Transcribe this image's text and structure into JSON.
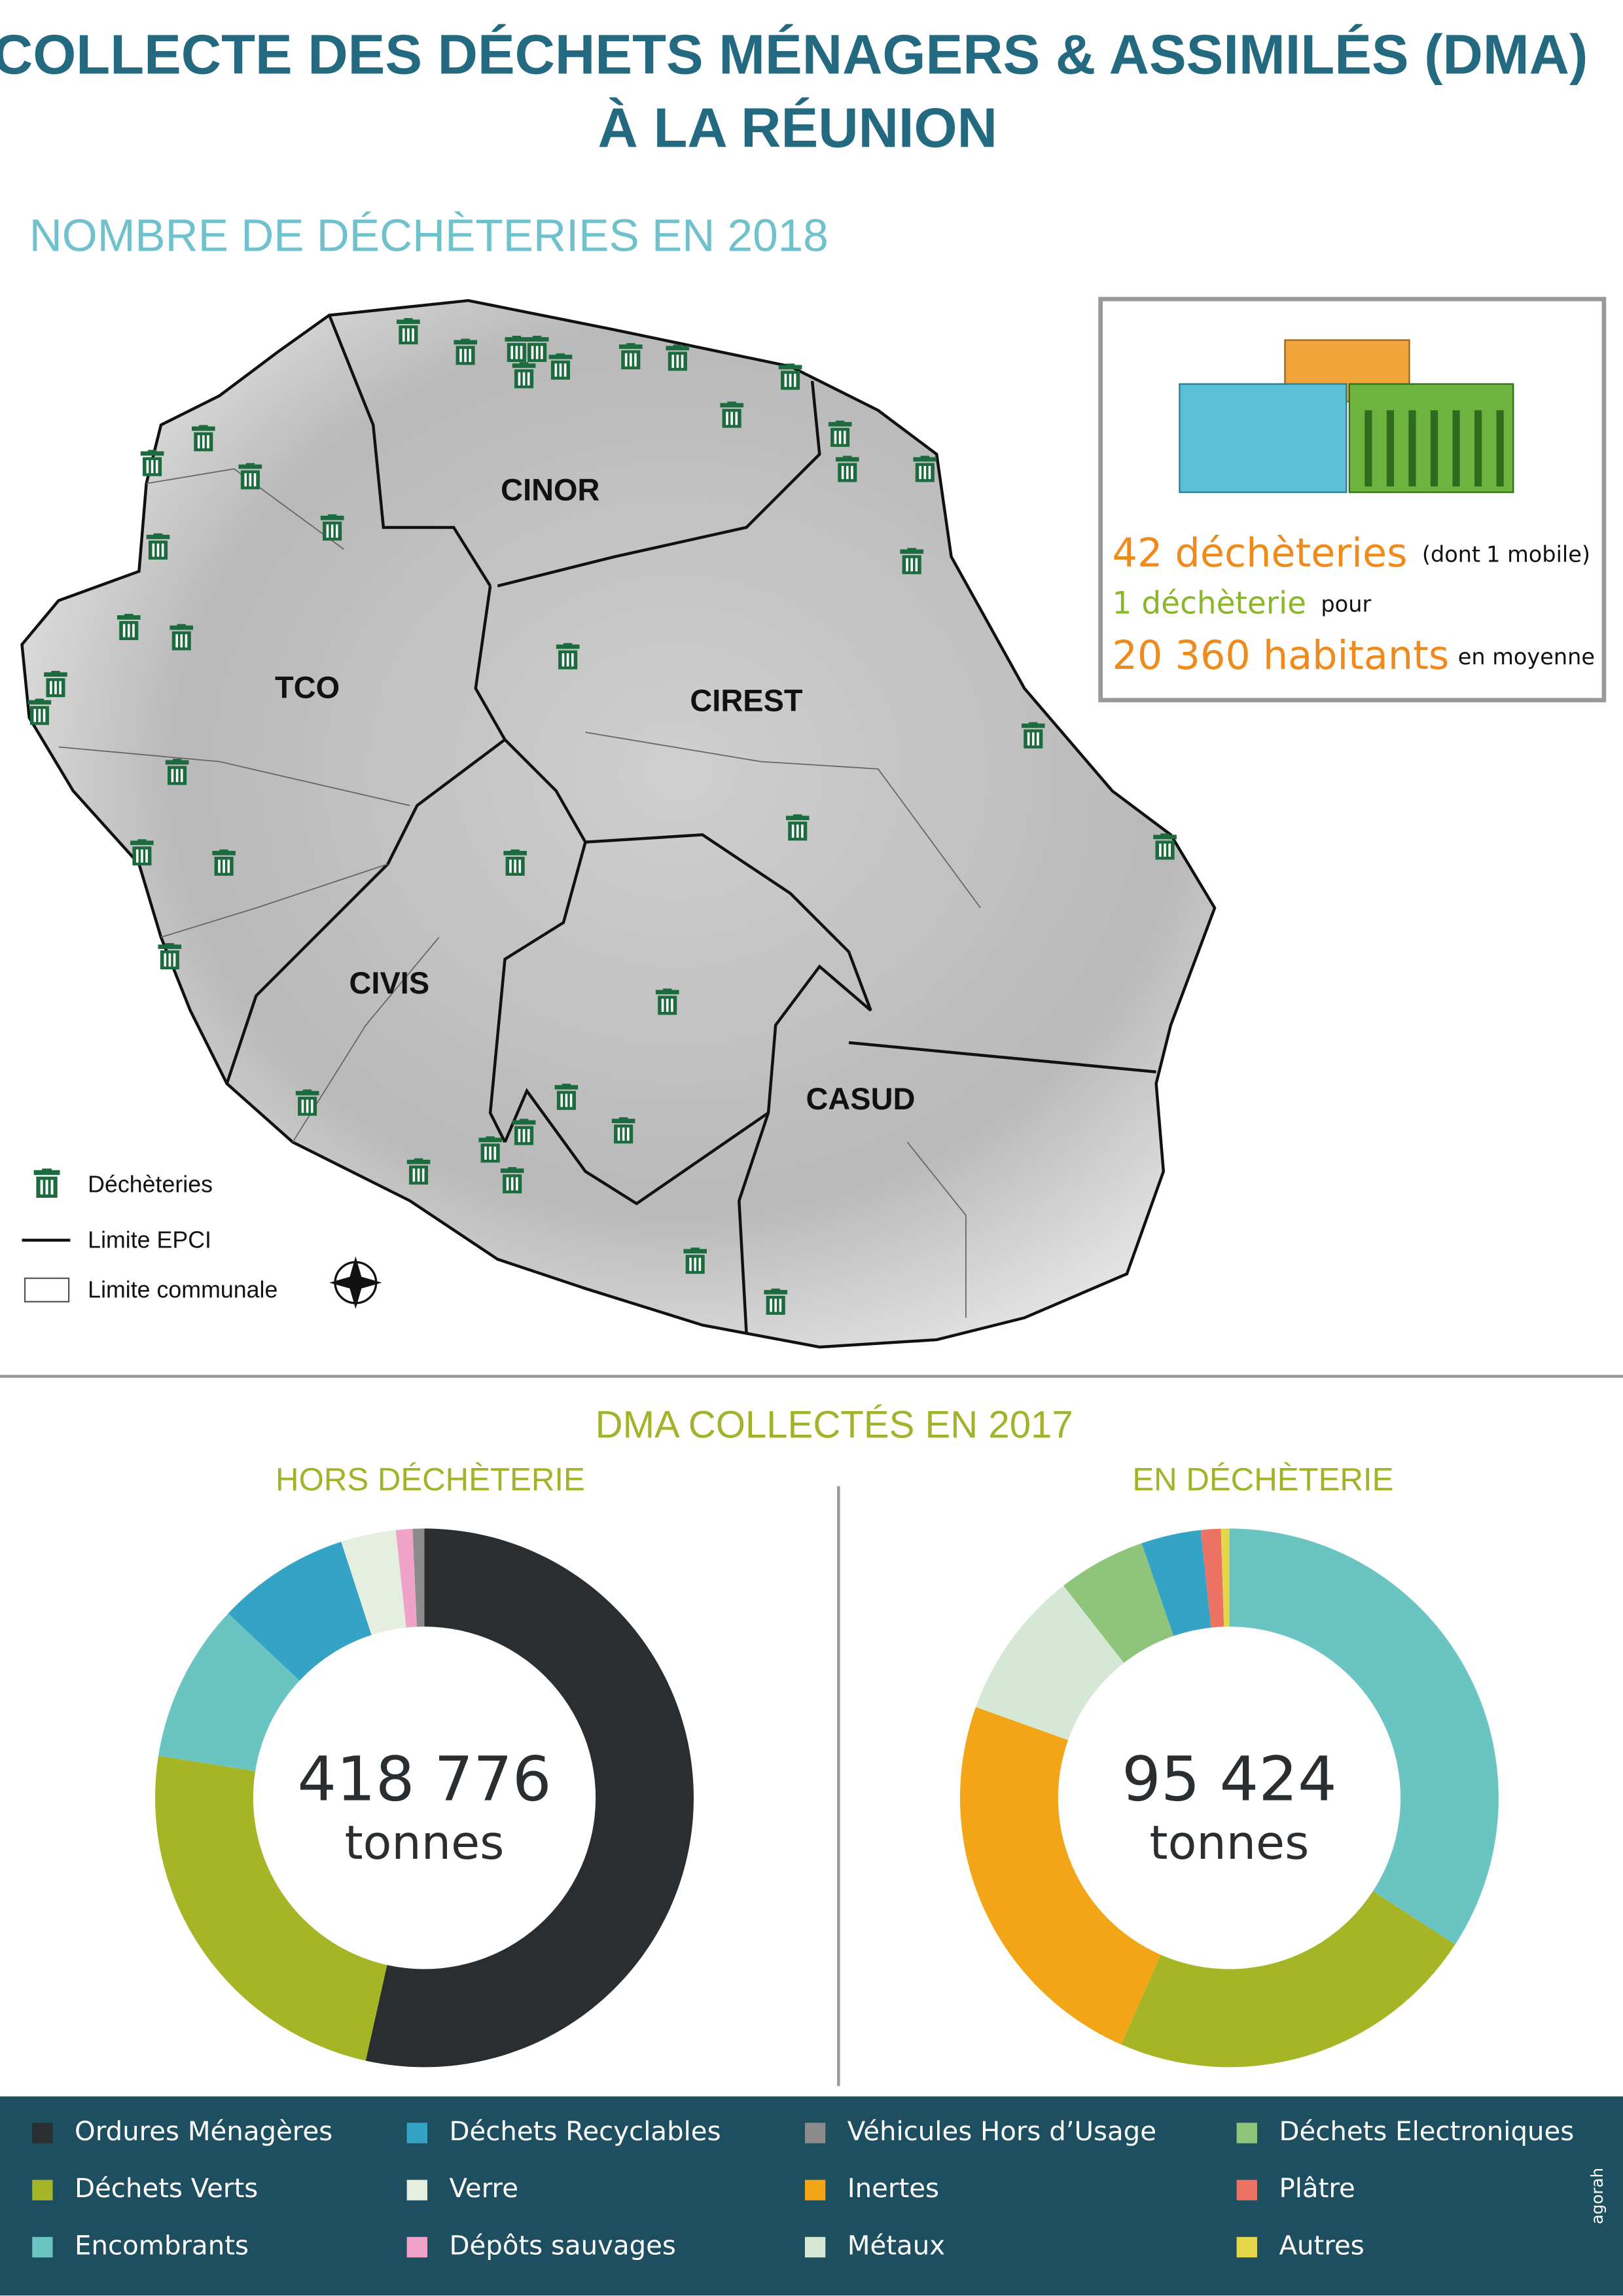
{
  "header": {
    "title_line1": "COLLECTE DES DÉCHETS MÉNAGERS & ASSIMILÉS (DMA)",
    "title_line2": "À LA RÉUNION"
  },
  "map": {
    "title": "NOMBRE DE DÉCHÈTERIES EN 2018",
    "labels": [
      "CINOR",
      "TCO",
      "CIREST",
      "CIVIS",
      "CASUD"
    ],
    "legend": [
      "Déchèteries",
      "Limite EPCI",
      "Limite communale"
    ]
  },
  "infobox": {
    "line1_main": "42 déchèteries",
    "line1_open": "(dont",
    "line1_mobile": "1 mobile",
    "line1_close": ")",
    "line2_main": "1 déchèterie",
    "line2_rest": "pour",
    "line3_main": "20 360 habitants",
    "line3_rest": "en moyenne"
  },
  "dma": {
    "title": "DMA COLLECTÉS EN 2017",
    "legend": [
      {
        "name": "Ordures Ménagères",
        "color": "#2b2e30"
      },
      {
        "name": "Déchets Verts",
        "color": "#a6b526"
      },
      {
        "name": "Encombrants",
        "color": "#6ac4c1"
      },
      {
        "name": "Déchets Recyclables",
        "color": "#35a3c6"
      },
      {
        "name": "Verre",
        "color": "#e6efdf"
      },
      {
        "name": "Dépôts sauvages",
        "color": "#f0a3c8"
      },
      {
        "name": "Véhicules Hors d’Usage",
        "color": "#8b8b8b"
      },
      {
        "name": "Inertes",
        "color": "#f2a516"
      },
      {
        "name": "Métaux",
        "color": "#d5e8d5"
      },
      {
        "name": "Déchets Electroniques",
        "color": "#8fc57b"
      },
      {
        "name": "Plâtre",
        "color": "#ec7364"
      },
      {
        "name": "Autres",
        "color": "#e4d84a"
      }
    ],
    "brand": "agorah"
  },
  "chart_data": [
    {
      "type": "pie",
      "title": "HORS DÉCHÈTERIE",
      "center_label": "418 776",
      "unit_label": "tonnes",
      "categories": [
        "Ordures Ménagères",
        "Déchets Verts",
        "Encombrants",
        "Déchets Recyclables",
        "Verre",
        "Dépôts sauvages",
        "Véhicules Hors d’Usage"
      ],
      "values": [
        53.5,
        24,
        9.5,
        8,
        3.3,
        1,
        0.7
      ],
      "colors": [
        "#2b2e30",
        "#a6b526",
        "#6ac4c1",
        "#35a3c6",
        "#e6efdf",
        "#f0a3c8",
        "#8b8b8b"
      ]
    },
    {
      "type": "pie",
      "title": "EN DÉCHÈTERIE",
      "center_label": "95 424",
      "unit_label": "tonnes",
      "categories": [
        "Encombrants",
        "Déchets Verts",
        "Inertes",
        "Métaux",
        "Déchets Electroniques",
        "Déchets Recyclables",
        "Plâtre",
        "Autres"
      ],
      "values": [
        34.3,
        22.5,
        24,
        9,
        5.3,
        3.6,
        1.2,
        0.5
      ],
      "colors": [
        "#6ac4c1",
        "#a6b526",
        "#f2a516",
        "#d5e8d5",
        "#8fc57b",
        "#35a3c6",
        "#ec7364",
        "#e4d84a"
      ]
    }
  ]
}
